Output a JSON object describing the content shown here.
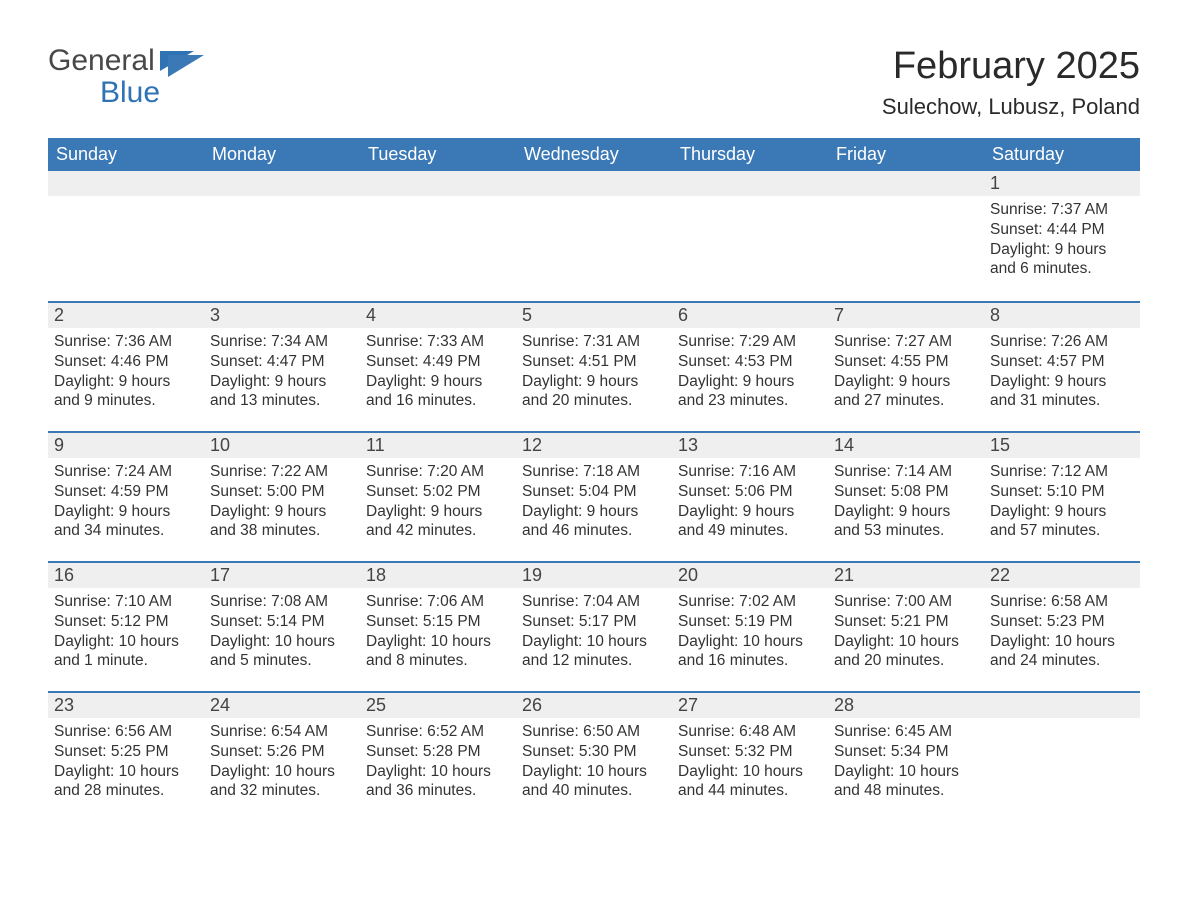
{
  "logo": {
    "word1": "General",
    "word2": "Blue"
  },
  "title": {
    "month": "February 2025",
    "location": "Sulechow, Lubusz, Poland"
  },
  "colors": {
    "header_bg": "#3a78b6",
    "header_text": "#ffffff",
    "daynum_bg": "#efefef",
    "row_border": "#3a78b6",
    "logo_blue": "#2f73b5",
    "text": "#333333",
    "background": "#ffffff"
  },
  "weekdays": [
    "Sunday",
    "Monday",
    "Tuesday",
    "Wednesday",
    "Thursday",
    "Friday",
    "Saturday"
  ],
  "weeks": [
    [
      null,
      null,
      null,
      null,
      null,
      null,
      {
        "n": "1",
        "sr": "Sunrise: 7:37 AM",
        "ss": "Sunset: 4:44 PM",
        "dl": "Daylight: 9 hours and 6 minutes."
      }
    ],
    [
      {
        "n": "2",
        "sr": "Sunrise: 7:36 AM",
        "ss": "Sunset: 4:46 PM",
        "dl": "Daylight: 9 hours and 9 minutes."
      },
      {
        "n": "3",
        "sr": "Sunrise: 7:34 AM",
        "ss": "Sunset: 4:47 PM",
        "dl": "Daylight: 9 hours and 13 minutes."
      },
      {
        "n": "4",
        "sr": "Sunrise: 7:33 AM",
        "ss": "Sunset: 4:49 PM",
        "dl": "Daylight: 9 hours and 16 minutes."
      },
      {
        "n": "5",
        "sr": "Sunrise: 7:31 AM",
        "ss": "Sunset: 4:51 PM",
        "dl": "Daylight: 9 hours and 20 minutes."
      },
      {
        "n": "6",
        "sr": "Sunrise: 7:29 AM",
        "ss": "Sunset: 4:53 PM",
        "dl": "Daylight: 9 hours and 23 minutes."
      },
      {
        "n": "7",
        "sr": "Sunrise: 7:27 AM",
        "ss": "Sunset: 4:55 PM",
        "dl": "Daylight: 9 hours and 27 minutes."
      },
      {
        "n": "8",
        "sr": "Sunrise: 7:26 AM",
        "ss": "Sunset: 4:57 PM",
        "dl": "Daylight: 9 hours and 31 minutes."
      }
    ],
    [
      {
        "n": "9",
        "sr": "Sunrise: 7:24 AM",
        "ss": "Sunset: 4:59 PM",
        "dl": "Daylight: 9 hours and 34 minutes."
      },
      {
        "n": "10",
        "sr": "Sunrise: 7:22 AM",
        "ss": "Sunset: 5:00 PM",
        "dl": "Daylight: 9 hours and 38 minutes."
      },
      {
        "n": "11",
        "sr": "Sunrise: 7:20 AM",
        "ss": "Sunset: 5:02 PM",
        "dl": "Daylight: 9 hours and 42 minutes."
      },
      {
        "n": "12",
        "sr": "Sunrise: 7:18 AM",
        "ss": "Sunset: 5:04 PM",
        "dl": "Daylight: 9 hours and 46 minutes."
      },
      {
        "n": "13",
        "sr": "Sunrise: 7:16 AM",
        "ss": "Sunset: 5:06 PM",
        "dl": "Daylight: 9 hours and 49 minutes."
      },
      {
        "n": "14",
        "sr": "Sunrise: 7:14 AM",
        "ss": "Sunset: 5:08 PM",
        "dl": "Daylight: 9 hours and 53 minutes."
      },
      {
        "n": "15",
        "sr": "Sunrise: 7:12 AM",
        "ss": "Sunset: 5:10 PM",
        "dl": "Daylight: 9 hours and 57 minutes."
      }
    ],
    [
      {
        "n": "16",
        "sr": "Sunrise: 7:10 AM",
        "ss": "Sunset: 5:12 PM",
        "dl": "Daylight: 10 hours and 1 minute."
      },
      {
        "n": "17",
        "sr": "Sunrise: 7:08 AM",
        "ss": "Sunset: 5:14 PM",
        "dl": "Daylight: 10 hours and 5 minutes."
      },
      {
        "n": "18",
        "sr": "Sunrise: 7:06 AM",
        "ss": "Sunset: 5:15 PM",
        "dl": "Daylight: 10 hours and 8 minutes."
      },
      {
        "n": "19",
        "sr": "Sunrise: 7:04 AM",
        "ss": "Sunset: 5:17 PM",
        "dl": "Daylight: 10 hours and 12 minutes."
      },
      {
        "n": "20",
        "sr": "Sunrise: 7:02 AM",
        "ss": "Sunset: 5:19 PM",
        "dl": "Daylight: 10 hours and 16 minutes."
      },
      {
        "n": "21",
        "sr": "Sunrise: 7:00 AM",
        "ss": "Sunset: 5:21 PM",
        "dl": "Daylight: 10 hours and 20 minutes."
      },
      {
        "n": "22",
        "sr": "Sunrise: 6:58 AM",
        "ss": "Sunset: 5:23 PM",
        "dl": "Daylight: 10 hours and 24 minutes."
      }
    ],
    [
      {
        "n": "23",
        "sr": "Sunrise: 6:56 AM",
        "ss": "Sunset: 5:25 PM",
        "dl": "Daylight: 10 hours and 28 minutes."
      },
      {
        "n": "24",
        "sr": "Sunrise: 6:54 AM",
        "ss": "Sunset: 5:26 PM",
        "dl": "Daylight: 10 hours and 32 minutes."
      },
      {
        "n": "25",
        "sr": "Sunrise: 6:52 AM",
        "ss": "Sunset: 5:28 PM",
        "dl": "Daylight: 10 hours and 36 minutes."
      },
      {
        "n": "26",
        "sr": "Sunrise: 6:50 AM",
        "ss": "Sunset: 5:30 PM",
        "dl": "Daylight: 10 hours and 40 minutes."
      },
      {
        "n": "27",
        "sr": "Sunrise: 6:48 AM",
        "ss": "Sunset: 5:32 PM",
        "dl": "Daylight: 10 hours and 44 minutes."
      },
      {
        "n": "28",
        "sr": "Sunrise: 6:45 AM",
        "ss": "Sunset: 5:34 PM",
        "dl": "Daylight: 10 hours and 48 minutes."
      },
      null
    ]
  ]
}
